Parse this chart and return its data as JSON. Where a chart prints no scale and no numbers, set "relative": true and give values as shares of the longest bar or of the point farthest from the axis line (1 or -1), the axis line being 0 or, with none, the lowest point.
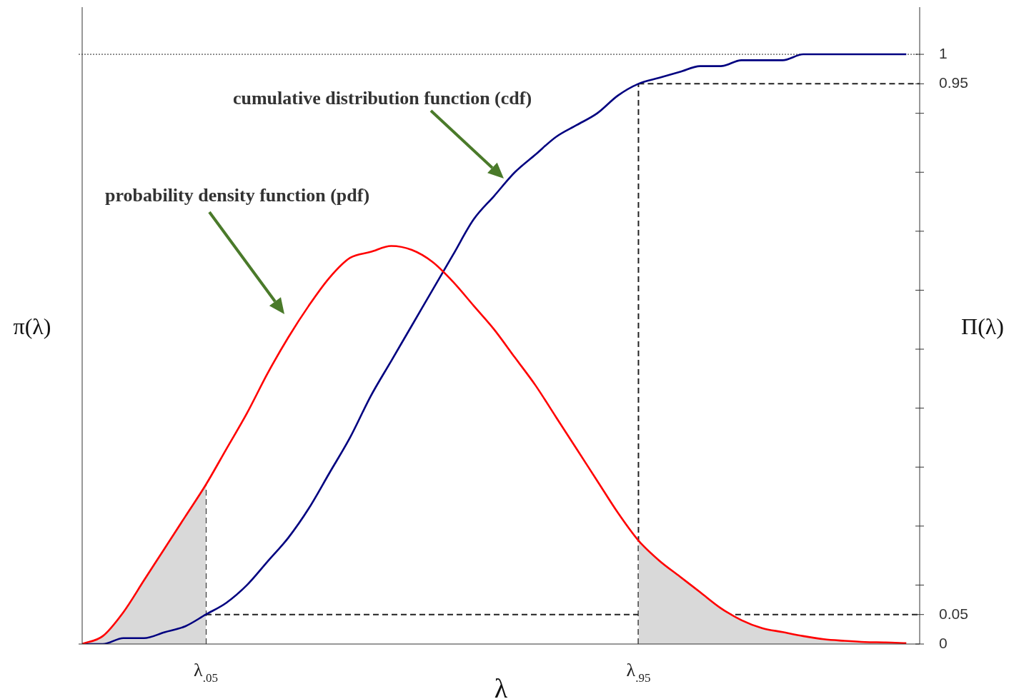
{
  "chart_data": {
    "type": "line",
    "relative": true,
    "xlabel": "λ",
    "ylabel": "π(λ)",
    "y2label": "Π(λ)",
    "annotations": [
      "cumulative distribution function (cdf)",
      "probability density function (pdf)"
    ],
    "categories": [
      null,
      null,
      null,
      null,
      null,
      null,
      "λ$_{.05}$",
      null,
      null,
      null,
      null,
      null,
      null,
      null,
      null,
      null,
      null,
      null,
      null,
      null,
      null,
      null,
      null,
      null,
      null,
      null,
      null,
      "λ$_{.95}$",
      null,
      null,
      null,
      null,
      null,
      null,
      null,
      null,
      null,
      null,
      null,
      null,
      null
    ],
    "y2lim": [
      0,
      1.08
    ],
    "y2ticks": [
      0,
      0.05,
      {
        "value": 0.1,
        "label": null
      },
      {
        "value": 0.2,
        "label": null
      },
      {
        "value": 0.3,
        "label": null
      },
      {
        "value": 0.4,
        "label": null
      },
      {
        "value": 0.5,
        "label": null
      },
      {
        "value": 0.6,
        "label": null
      },
      {
        "value": 0.7,
        "label": null
      },
      {
        "value": 0.8,
        "label": null
      },
      {
        "value": 0.9,
        "label": null
      },
      0.95,
      1
    ],
    "series": [
      {
        "type": "area",
        "color": "#d9d9d9",
        "values": [
          0,
          0.02,
          0.08,
          0.16,
          0.24,
          0.32,
          0.4,
          null,
          null,
          null,
          null,
          null,
          null,
          null,
          null,
          null,
          null,
          null,
          null,
          null,
          null,
          null,
          null,
          null,
          null,
          null,
          null,
          0.26,
          0.21,
          0.17,
          0.13,
          0.09,
          0.06,
          0.04,
          0.03,
          0.02,
          0.012,
          0.008,
          0.005,
          0.004,
          0.002
        ]
      },
      {
        "color": "#ff0000",
        "values": [
          0,
          0.02,
          0.08,
          0.16,
          0.24,
          0.32,
          0.4,
          0.49,
          0.58,
          0.68,
          0.77,
          0.85,
          0.92,
          0.97,
          0.985,
          1,
          0.99,
          0.96,
          0.91,
          0.85,
          0.79,
          0.72,
          0.65,
          0.57,
          0.49,
          0.41,
          0.33,
          0.26,
          0.21,
          0.17,
          0.13,
          0.09,
          0.06,
          0.04,
          0.03,
          0.02,
          0.012,
          0.008,
          0.005,
          0.004,
          0.002
        ]
      },
      {
        "color": "#000080",
        "axis": "y2",
        "values": [
          0,
          0,
          0.01,
          0.01,
          0.02,
          0.03,
          0.05,
          0.07,
          0.1,
          0.14,
          0.18,
          0.23,
          0.29,
          0.35,
          0.42,
          0.48,
          0.54,
          0.6,
          0.66,
          0.72,
          0.76,
          0.8,
          0.83,
          0.86,
          0.88,
          0.9,
          0.93,
          0.95,
          0.96,
          0.97,
          0.98,
          0.98,
          0.99,
          0.99,
          0.99,
          1,
          1,
          1,
          1,
          1,
          1
        ]
      }
    ],
    "ref_lines": [
      {
        "axis": "x",
        "value": "λ$_{.05}$",
        "line_style": "dashed"
      },
      {
        "axis": "x",
        "value": "λ$_{.95}$",
        "line_style": "dashed"
      },
      {
        "axis": "y2",
        "value": 0.05,
        "line_style": "dashed"
      },
      {
        "axis": "y2",
        "value": 0.95,
        "line_style": "dashed"
      },
      {
        "axis": "y2",
        "value": 1,
        "line_style": "dotted"
      }
    ]
  }
}
